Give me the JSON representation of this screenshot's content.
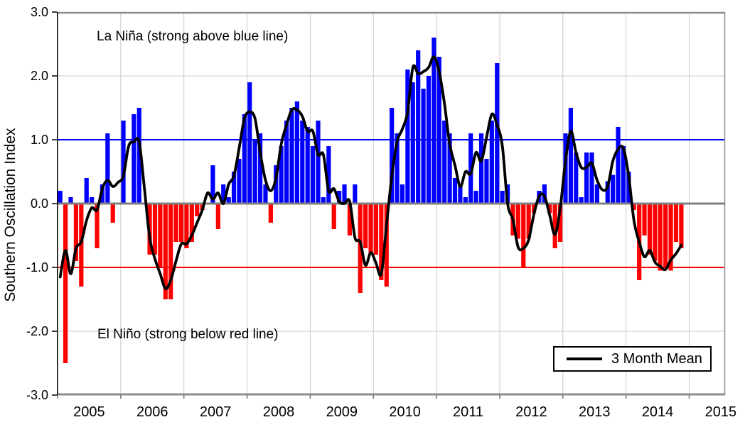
{
  "y_axis": {
    "label": "Southern Oscillation Index",
    "tick_labels": [
      "3.0",
      "2.0",
      "1.0",
      "0.0",
      "-1.0",
      "-2.0",
      "-3.0"
    ],
    "tick_values": [
      3,
      2,
      1,
      0,
      -1,
      -2,
      -3
    ]
  },
  "x_axis": {
    "tick_labels": [
      "2005",
      "2006",
      "2007",
      "2008",
      "2009",
      "2010",
      "2011",
      "2012",
      "2013",
      "2014",
      "2015"
    ]
  },
  "annotations": {
    "la_nina": "La Niña (strong above blue line)",
    "el_nino": "El Niño (strong below red line)"
  },
  "legend": {
    "label": "3 Month Mean"
  },
  "colors": {
    "positive_bar": "#0000ff",
    "negative_bar": "#ff0000",
    "la_nina_line": "#0000ff",
    "el_nino_line": "#ff0000",
    "zero_line": "#808080",
    "gridline": "#c9c9c9",
    "frame_gray": "#8d8d8d",
    "axis_black": "#000000",
    "mean_line": "#000000"
  },
  "chart_data": {
    "type": "bar+line",
    "ylabel": "Southern Oscillation Index",
    "ylim": [
      -3,
      3
    ],
    "yticks": [
      3,
      2,
      1,
      0,
      -1,
      -2,
      -3
    ],
    "x_years": [
      2005,
      2006,
      2007,
      2008,
      2009,
      2010,
      2011,
      2012,
      2013,
      2014,
      2015
    ],
    "start_month": "2005-01",
    "monthly_values": [
      0.2,
      -2.5,
      0.1,
      -0.9,
      -1.3,
      0.4,
      0.1,
      -0.7,
      0.3,
      1.1,
      -0.3,
      0.0,
      1.3,
      0.0,
      1.4,
      1.5,
      0.0,
      -0.8,
      -0.8,
      -1.0,
      -1.5,
      -1.5,
      -0.6,
      -0.6,
      -0.7,
      -0.6,
      -0.2,
      -0.1,
      0.0,
      0.6,
      -0.4,
      0.3,
      0.1,
      0.5,
      0.7,
      1.4,
      1.9,
      1.0,
      1.1,
      0.3,
      -0.3,
      0.6,
      0.9,
      1.3,
      1.5,
      1.6,
      1.3,
      1.2,
      0.9,
      1.3,
      0.1,
      0.9,
      -0.4,
      0.2,
      0.3,
      -0.5,
      0.3,
      -1.4,
      -0.7,
      -0.8,
      -0.8,
      -1.2,
      -1.3,
      1.5,
      1.1,
      0.3,
      2.1,
      1.9,
      2.4,
      1.8,
      2.0,
      2.6,
      2.3,
      1.3,
      1.1,
      0.4,
      0.3,
      0.1,
      1.1,
      0.2,
      1.1,
      0.7,
      1.3,
      2.2,
      0.2,
      0.3,
      -0.5,
      -0.55,
      -1.0,
      -0.55,
      -0.15,
      0.2,
      0.3,
      -0.15,
      -0.7,
      -0.6,
      1.1,
      1.5,
      0.8,
      0.1,
      0.8,
      0.8,
      0.3,
      0.0,
      0.35,
      0.45,
      1.2,
      0.9,
      0.5,
      -0.1,
      -1.2,
      -0.5,
      -0.8,
      -0.9,
      -1.05,
      -1.0,
      -1.05,
      -0.6,
      -0.7
    ],
    "line_series": {
      "name": "3 Month Mean",
      "derivation": "centered 3-month running mean of monthly_values (edges use available months)"
    },
    "thresholds": {
      "la_nina": 1.0,
      "el_nino": -1.0
    },
    "grid": {
      "horizontal_at": [
        -2,
        -1,
        0,
        1,
        2
      ],
      "vertical_at_year_boundaries": true,
      "legend_position": "bottom-right inside"
    }
  }
}
